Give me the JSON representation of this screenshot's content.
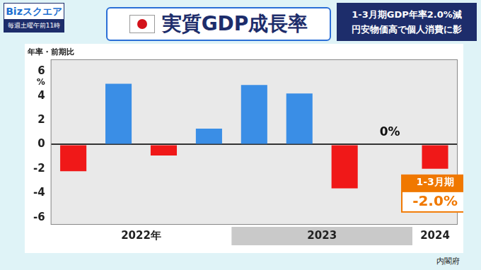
{
  "header": {
    "logo": "Bizスクエア",
    "schedule": "毎週土曜午前11時",
    "headline": [
      "1-3月期GDP年率2.0%減",
      "円安物価高で個人消費に影"
    ]
  },
  "chart_data": {
    "type": "bar",
    "title": "実質GDP成長率",
    "ylabel": "年率・前期比",
    "y_unit": "%",
    "categories": [
      "2022年",
      null,
      null,
      null,
      "2023",
      null,
      null,
      null,
      "2024"
    ],
    "values": [
      -2.2,
      5.0,
      -0.9,
      1.3,
      4.9,
      4.2,
      -3.6,
      0,
      -2.0
    ],
    "value_labels": [
      null,
      null,
      null,
      null,
      null,
      null,
      null,
      "0%",
      "-2.0%"
    ],
    "colors": [
      "#f01818",
      "#3a8ee6",
      "#f01818",
      "#3a8ee6",
      "#3a8ee6",
      "#3a8ee6",
      "#f01818",
      "#3a8ee6",
      "#f01818"
    ],
    "ylim": [
      -6.6,
      7
    ],
    "yticks": [
      -6,
      -4,
      -2,
      0,
      2,
      4,
      6
    ],
    "grid": false,
    "data_labels": true,
    "tick_labels": "y",
    "annotations": [
      "1-3月期"
    ],
    "source": "内閣府"
  }
}
